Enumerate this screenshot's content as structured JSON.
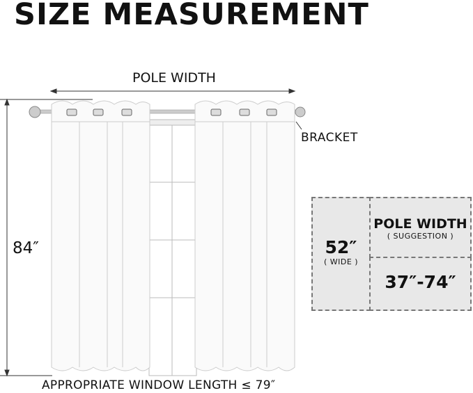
{
  "title": "SIZE MEASUREMENT",
  "labels": {
    "pole_width": "POLE WIDTH",
    "bracket": "BRACKET",
    "height": "84″",
    "window_length": "APPROPRIATE WINDOW LENGTH ≤ 79″"
  },
  "size_table": {
    "width_value": "52″",
    "width_note": "( WIDE )",
    "pole_heading": "POLE WIDTH",
    "pole_note": "( SUGGESTION )",
    "pole_range": "37″-74″"
  },
  "colors": {
    "box_fill": "#e8e8e8",
    "box_border": "#777777"
  }
}
